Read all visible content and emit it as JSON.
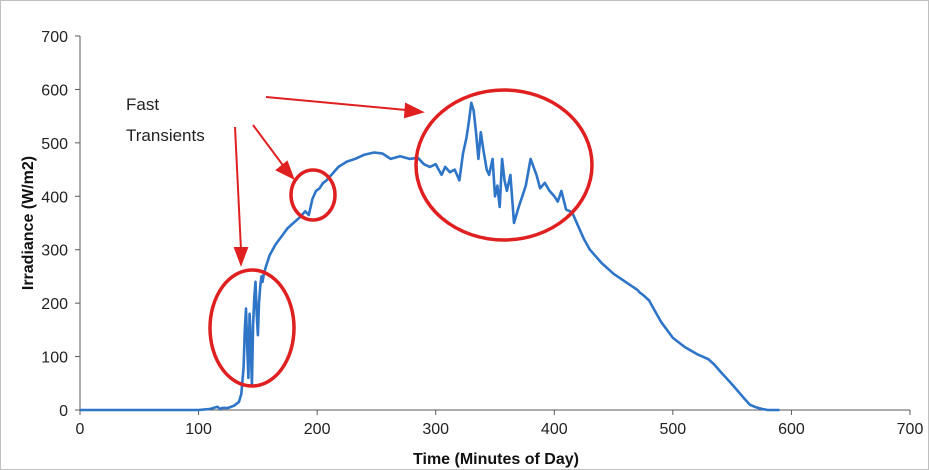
{
  "chart_data": {
    "type": "line",
    "title": "",
    "xlabel": "Time (Minutes of Day)",
    "ylabel": "Irradiance (W/m2)",
    "xlim": [
      0,
      700
    ],
    "ylim": [
      0,
      700
    ],
    "xticks": [
      "0",
      "100",
      "200",
      "300",
      "400",
      "500",
      "600",
      "700"
    ],
    "yticks": [
      "0",
      "100",
      "200",
      "300",
      "400",
      "500",
      "600",
      "700"
    ],
    "grid": false,
    "line_color": "#2E75C8",
    "annotation_color": "#E02020",
    "annotation_text": [
      "Fast",
      "Transients"
    ],
    "series": [
      {
        "x": [
          0,
          20,
          40,
          60,
          80,
          100,
          110,
          116,
          118,
          120,
          125,
          130,
          134,
          136,
          138,
          139,
          140,
          141,
          142,
          143,
          144,
          145,
          146,
          147,
          148,
          149,
          150,
          151,
          152,
          153,
          154,
          155,
          157,
          160,
          165,
          170,
          175,
          180,
          185,
          190,
          193,
          196,
          199,
          202,
          205,
          208,
          212,
          218,
          225,
          232,
          240,
          248,
          255,
          262,
          270,
          278,
          285,
          290,
          295,
          300,
          305,
          308,
          312,
          316,
          320,
          323,
          326,
          328,
          330,
          332,
          334,
          336,
          338,
          340,
          343,
          345,
          348,
          350,
          352,
          354,
          356,
          358,
          360,
          363,
          366,
          370,
          373,
          376,
          380,
          385,
          388,
          392,
          396,
          400,
          403,
          406,
          410,
          415,
          420,
          425,
          430,
          440,
          450,
          460,
          470,
          472,
          475,
          480,
          485,
          490,
          500,
          510,
          520,
          530,
          535,
          540,
          550,
          560,
          565,
          570,
          575,
          580,
          590
        ],
        "y": [
          0,
          0,
          0,
          0,
          0,
          0,
          2,
          6,
          2,
          4,
          4,
          8,
          15,
          30,
          80,
          150,
          190,
          120,
          60,
          180,
          130,
          45,
          160,
          210,
          240,
          180,
          140,
          200,
          230,
          250,
          240,
          255,
          270,
          290,
          310,
          325,
          340,
          350,
          360,
          372,
          365,
          395,
          410,
          415,
          425,
          430,
          440,
          455,
          465,
          470,
          478,
          482,
          480,
          470,
          475,
          470,
          472,
          460,
          455,
          460,
          440,
          455,
          445,
          450,
          430,
          480,
          510,
          540,
          575,
          560,
          520,
          470,
          520,
          490,
          450,
          440,
          470,
          400,
          420,
          380,
          470,
          430,
          410,
          440,
          350,
          380,
          400,
          420,
          470,
          440,
          415,
          425,
          410,
          400,
          390,
          410,
          375,
          370,
          345,
          320,
          300,
          275,
          255,
          240,
          225,
          220,
          215,
          205,
          185,
          165,
          135,
          118,
          105,
          95,
          85,
          72,
          48,
          22,
          10,
          5,
          2,
          0,
          0
        ]
      }
    ]
  }
}
